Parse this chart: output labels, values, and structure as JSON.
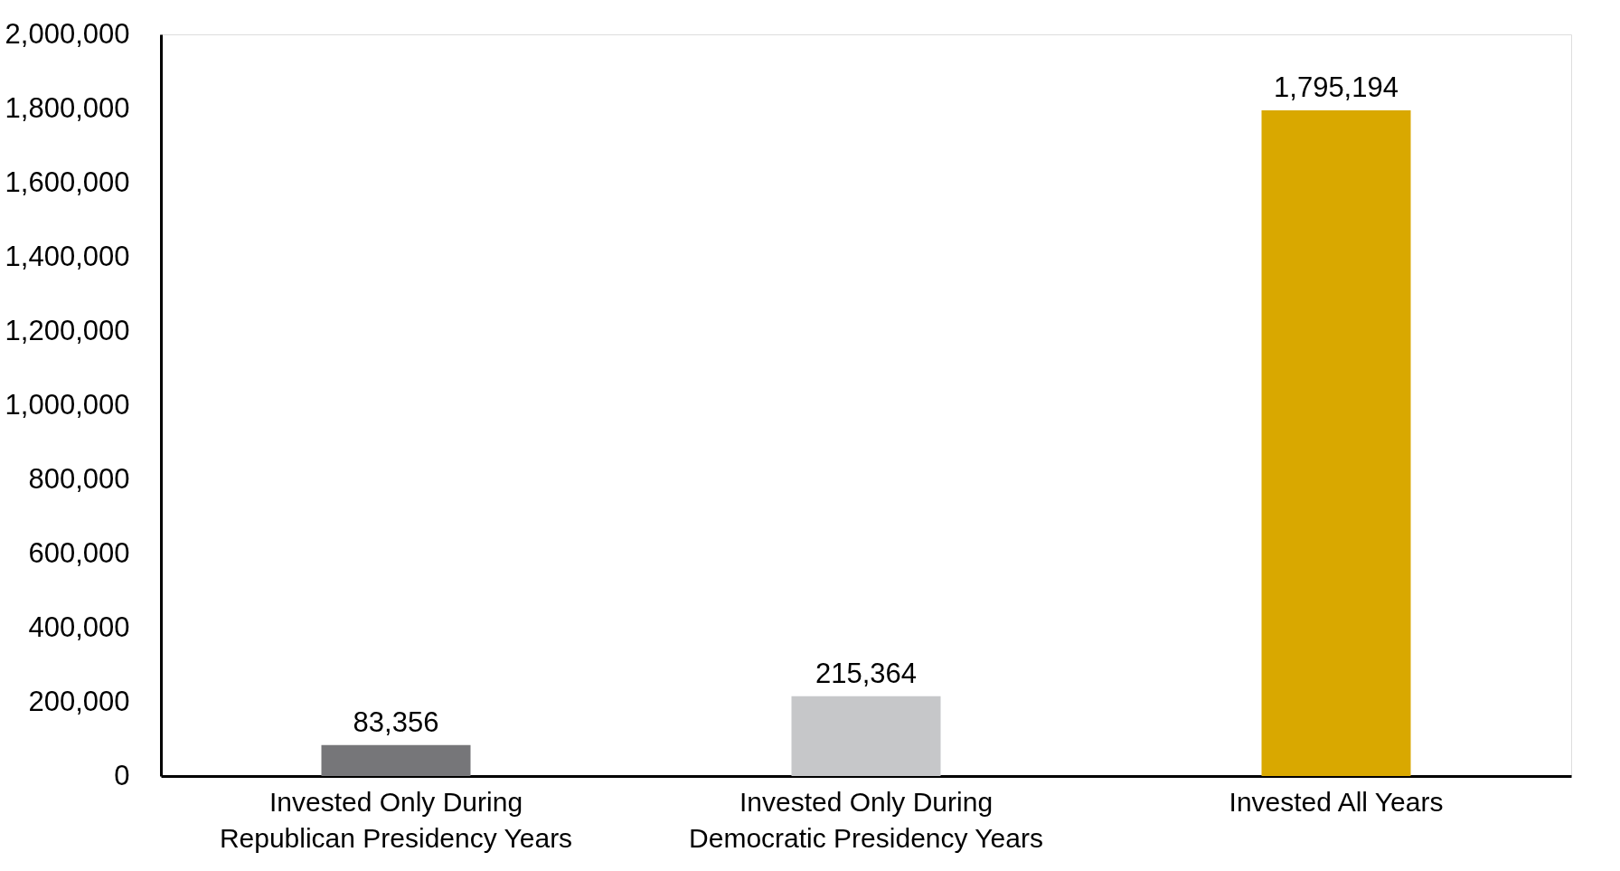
{
  "chart_data": {
    "type": "bar",
    "categories": [
      "Invested Only During Republican Presidency Years",
      "Invested Only During Democratic Presidency Years",
      "Invested All Years"
    ],
    "values": [
      83356,
      215364,
      1795194
    ],
    "value_labels": [
      "83,356",
      "215,364",
      "1,795,194"
    ],
    "colors": [
      "#767679",
      "#c6c7c9",
      "#d9a800"
    ],
    "ylim": [
      0,
      2000000
    ],
    "yticks": [
      {
        "value": 0,
        "label": "0"
      },
      {
        "value": 200000,
        "label": "200,000"
      },
      {
        "value": 400000,
        "label": "400,000"
      },
      {
        "value": 600000,
        "label": "600,000"
      },
      {
        "value": 800000,
        "label": "800,000"
      },
      {
        "value": 1000000,
        "label": "1,000,000"
      },
      {
        "value": 1200000,
        "label": "1,200,000"
      },
      {
        "value": 1400000,
        "label": "1,400,000"
      },
      {
        "value": 1600000,
        "label": "1,600,000"
      },
      {
        "value": 1800000,
        "label": "1,800,000"
      },
      {
        "value": 2000000,
        "label": "2,000,000"
      }
    ],
    "grid": false
  }
}
